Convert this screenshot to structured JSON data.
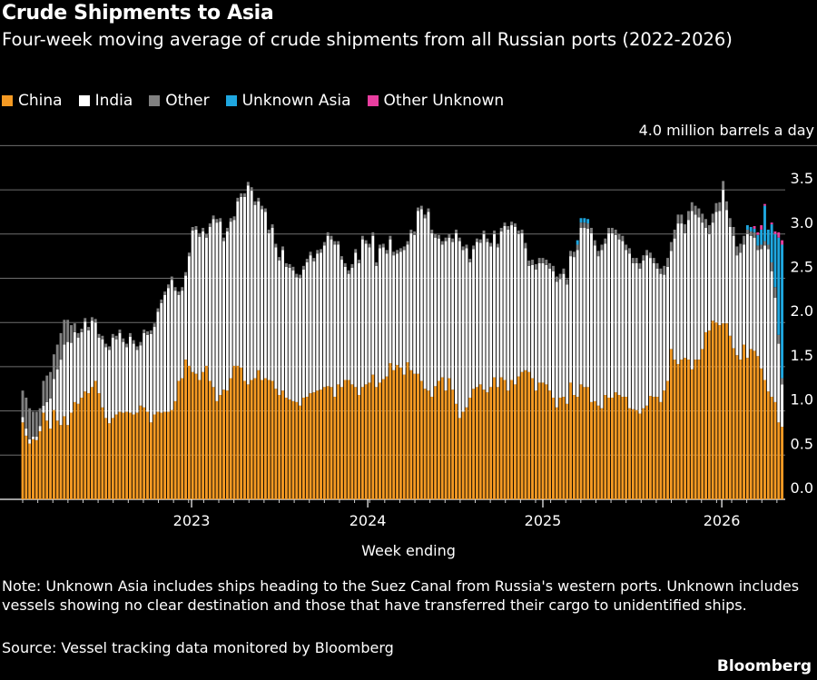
{
  "header": {
    "title": "Crude Shipments to Asia",
    "subtitle": "Four-week moving average of crude shipments from all Russian ports (2022-2026)"
  },
  "footer": {
    "note": "Note: Unknown Asia includes ships heading to the Suez Canal from Russia's western ports. Unknown includes vessels showing no clear destination and those that have transferred their cargo to unidentified ships.",
    "source": "Source: Vessel tracking data monitored by Bloomberg",
    "brand": "Bloomberg"
  },
  "chart_data": {
    "type": "bar",
    "stacked": true,
    "title": "Crude Shipments to Asia",
    "xlabel": "Week ending",
    "ylabel": "million barrels a day",
    "unit_label": "4.0 million barrels a day",
    "ylim": [
      0,
      4.0
    ],
    "grid": true,
    "legend_position": "top-left",
    "yticks": [
      {
        "value": 0.0,
        "label": "0.0"
      },
      {
        "value": 0.5,
        "label": "0.5"
      },
      {
        "value": 1.0,
        "label": "1.0"
      },
      {
        "value": 1.5,
        "label": "1.5"
      },
      {
        "value": 2.0,
        "label": "2.0"
      },
      {
        "value": 2.5,
        "label": "2.5"
      },
      {
        "value": 3.0,
        "label": "3.0"
      },
      {
        "value": 3.5,
        "label": "3.5"
      },
      {
        "value": 4.0,
        "label": ""
      }
    ],
    "xticks": [
      {
        "week_index": 48.7,
        "label": "2023"
      },
      {
        "week_index": 99.5,
        "label": "2024"
      },
      {
        "week_index": 150,
        "label": "2025"
      },
      {
        "week_index": 201.6,
        "label": "2026"
      }
    ],
    "n_weeks": 220,
    "series": [
      {
        "name": "China",
        "color": "#f59a23",
        "values": [
          0.87,
          0.72,
          0.63,
          0.68,
          0.67,
          0.77,
          0.98,
          0.89,
          0.8,
          1.01,
          0.89,
          0.84,
          0.94,
          0.84,
          0.98,
          1.1,
          1.08,
          1.15,
          1.22,
          1.2,
          1.27,
          1.34,
          1.2,
          1.04,
          0.92,
          0.86,
          0.92,
          0.96,
          0.99,
          0.98,
          0.99,
          0.98,
          0.96,
          0.98,
          1.06,
          1.04,
          0.99,
          0.87,
          0.96,
          0.99,
          0.98,
          0.99,
          0.99,
          1.01,
          1.11,
          1.34,
          1.37,
          1.58,
          1.51,
          1.44,
          1.42,
          1.35,
          1.44,
          1.51,
          1.34,
          1.27,
          1.11,
          1.18,
          1.24,
          1.23,
          1.37,
          1.51,
          1.51,
          1.49,
          1.34,
          1.3,
          1.35,
          1.37,
          1.46,
          1.35,
          1.37,
          1.35,
          1.34,
          1.25,
          1.18,
          1.23,
          1.15,
          1.13,
          1.11,
          1.1,
          1.06,
          1.15,
          1.16,
          1.2,
          1.21,
          1.23,
          1.24,
          1.27,
          1.28,
          1.27,
          1.16,
          1.3,
          1.27,
          1.35,
          1.35,
          1.3,
          1.27,
          1.18,
          1.27,
          1.3,
          1.32,
          1.41,
          1.27,
          1.32,
          1.36,
          1.39,
          1.54,
          1.46,
          1.52,
          1.49,
          1.41,
          1.55,
          1.46,
          1.42,
          1.42,
          1.34,
          1.25,
          1.23,
          1.16,
          1.28,
          1.34,
          1.38,
          1.23,
          1.37,
          1.24,
          1.08,
          0.92,
          0.99,
          1.04,
          1.15,
          1.25,
          1.27,
          1.3,
          1.24,
          1.21,
          1.27,
          1.38,
          1.27,
          1.38,
          1.35,
          1.23,
          1.35,
          1.3,
          1.39,
          1.44,
          1.46,
          1.44,
          1.37,
          1.23,
          1.32,
          1.32,
          1.3,
          1.23,
          1.15,
          1.04,
          1.15,
          1.16,
          1.08,
          1.32,
          1.18,
          1.16,
          1.3,
          1.27,
          1.27,
          1.1,
          1.11,
          1.06,
          1.03,
          1.18,
          1.15,
          1.15,
          1.21,
          1.18,
          1.16,
          1.16,
          1.03,
          1.02,
          1.01,
          0.97,
          1.03,
          1.06,
          1.17,
          1.16,
          1.16,
          1.1,
          1.23,
          1.34,
          1.7,
          1.58,
          1.53,
          1.58,
          1.6,
          1.58,
          1.47,
          1.58,
          1.58,
          1.7,
          1.89,
          1.91,
          2.02,
          2.0,
          1.97,
          1.99,
          1.99,
          1.85,
          1.71,
          1.63,
          1.58,
          1.75,
          1.6,
          1.7,
          1.68,
          1.62,
          1.48,
          1.35,
          1.22,
          1.16,
          1.1,
          0.87,
          0.82
        ]
      },
      {
        "name": "India",
        "color": "#ffffff",
        "values": [
          0.06,
          0.08,
          0.05,
          0.03,
          0.04,
          0.06,
          0.08,
          0.21,
          0.34,
          0.35,
          0.58,
          0.74,
          0.81,
          0.94,
          0.79,
          0.79,
          0.75,
          0.74,
          0.79,
          0.71,
          0.75,
          0.66,
          0.63,
          0.77,
          0.8,
          0.83,
          0.91,
          0.85,
          0.89,
          0.8,
          0.73,
          0.86,
          0.8,
          0.71,
          0.68,
          0.84,
          0.87,
          1.0,
          0.99,
          1.13,
          1.24,
          1.32,
          1.4,
          1.47,
          1.25,
          0.97,
          0.99,
          0.95,
          1.24,
          1.6,
          1.63,
          1.62,
          1.59,
          1.45,
          1.74,
          1.9,
          2.02,
          1.96,
          1.68,
          1.8,
          1.77,
          1.65,
          1.86,
          1.93,
          2.08,
          2.25,
          2.14,
          1.96,
          1.91,
          1.93,
          1.88,
          1.66,
          1.73,
          1.6,
          1.52,
          1.59,
          1.48,
          1.49,
          1.48,
          1.41,
          1.44,
          1.45,
          1.52,
          1.56,
          1.48,
          1.55,
          1.55,
          1.6,
          1.7,
          1.67,
          1.72,
          1.58,
          1.44,
          1.28,
          1.2,
          1.32,
          1.52,
          1.49,
          1.67,
          1.59,
          1.53,
          1.57,
          1.37,
          1.52,
          1.49,
          1.39,
          1.4,
          1.3,
          1.26,
          1.31,
          1.41,
          1.33,
          1.55,
          1.57,
          1.84,
          1.94,
          1.93,
          2.02,
          1.85,
          1.68,
          1.61,
          1.5,
          1.69,
          1.59,
          1.67,
          1.93,
          2.0,
          1.83,
          1.8,
          1.53,
          1.58,
          1.64,
          1.6,
          1.76,
          1.7,
          1.59,
          1.62,
          1.58,
          1.65,
          1.74,
          1.82,
          1.75,
          1.78,
          1.61,
          1.57,
          1.38,
          1.2,
          1.28,
          1.37,
          1.35,
          1.35,
          1.35,
          1.38,
          1.43,
          1.42,
          1.34,
          1.39,
          1.35,
          1.43,
          1.56,
          1.66,
          1.77,
          1.8,
          1.79,
          1.91,
          1.76,
          1.69,
          1.79,
          1.71,
          1.86,
          1.86,
          1.78,
          1.76,
          1.76,
          1.66,
          1.75,
          1.65,
          1.66,
          1.64,
          1.67,
          1.7,
          1.56,
          1.51,
          1.45,
          1.45,
          1.31,
          1.29,
          1.11,
          1.37,
          1.59,
          1.54,
          1.41,
          1.58,
          1.79,
          1.64,
          1.61,
          1.43,
          1.18,
          1.09,
          1.11,
          1.25,
          1.29,
          1.51,
          1.28,
          1.23,
          1.27,
          1.13,
          1.21,
          1.13,
          1.4,
          1.28,
          1.28,
          1.2,
          1.35,
          1.52,
          1.61,
          1.42,
          1.18,
          0.89,
          0.48
        ]
      },
      {
        "name": "Other",
        "color": "#808080",
        "values": [
          0.3,
          0.35,
          0.35,
          0.28,
          0.28,
          0.2,
          0.28,
          0.3,
          0.3,
          0.28,
          0.28,
          0.3,
          0.28,
          0.25,
          0.2,
          0.1,
          0.05,
          0.04,
          0.04,
          0.04,
          0.04,
          0.04,
          0.04,
          0.04,
          0.04,
          0.04,
          0.04,
          0.04,
          0.04,
          0.04,
          0.04,
          0.04,
          0.04,
          0.04,
          0.04,
          0.04,
          0.04,
          0.04,
          0.04,
          0.04,
          0.04,
          0.04,
          0.04,
          0.04,
          0.04,
          0.04,
          0.04,
          0.04,
          0.04,
          0.04,
          0.04,
          0.04,
          0.04,
          0.04,
          0.04,
          0.04,
          0.04,
          0.04,
          0.04,
          0.04,
          0.04,
          0.04,
          0.04,
          0.04,
          0.04,
          0.04,
          0.04,
          0.04,
          0.04,
          0.04,
          0.04,
          0.04,
          0.04,
          0.04,
          0.04,
          0.04,
          0.04,
          0.04,
          0.04,
          0.04,
          0.04,
          0.04,
          0.04,
          0.04,
          0.04,
          0.04,
          0.04,
          0.04,
          0.04,
          0.04,
          0.04,
          0.04,
          0.04,
          0.04,
          0.04,
          0.04,
          0.04,
          0.04,
          0.04,
          0.04,
          0.04,
          0.04,
          0.04,
          0.04,
          0.04,
          0.04,
          0.04,
          0.04,
          0.04,
          0.04,
          0.04,
          0.04,
          0.04,
          0.04,
          0.04,
          0.04,
          0.04,
          0.04,
          0.04,
          0.04,
          0.04,
          0.04,
          0.04,
          0.04,
          0.04,
          0.04,
          0.04,
          0.04,
          0.04,
          0.04,
          0.04,
          0.04,
          0.04,
          0.04,
          0.04,
          0.04,
          0.04,
          0.04,
          0.04,
          0.04,
          0.04,
          0.04,
          0.04,
          0.04,
          0.04,
          0.06,
          0.06,
          0.06,
          0.06,
          0.06,
          0.06,
          0.06,
          0.06,
          0.06,
          0.06,
          0.06,
          0.06,
          0.06,
          0.06,
          0.06,
          0.06,
          0.06,
          0.06,
          0.06,
          0.06,
          0.06,
          0.06,
          0.06,
          0.06,
          0.06,
          0.06,
          0.06,
          0.06,
          0.06,
          0.06,
          0.06,
          0.06,
          0.06,
          0.06,
          0.06,
          0.06,
          0.06,
          0.06,
          0.06,
          0.06,
          0.1,
          0.1,
          0.1,
          0.1,
          0.1,
          0.1,
          0.1,
          0.1,
          0.1,
          0.1,
          0.1,
          0.1,
          0.1,
          0.1,
          0.1,
          0.1,
          0.1,
          0.1,
          0.1,
          0.1,
          0.1,
          0.1,
          0.1,
          0.1,
          0.05,
          0.05,
          0.06,
          0.05,
          0.05,
          0.05,
          0.05,
          0.1,
          0.12,
          0.1,
          0.07
        ]
      },
      {
        "name": "Unknown Asia",
        "color": "#1fa7e0",
        "values": [
          0,
          0,
          0,
          0,
          0,
          0,
          0,
          0,
          0,
          0,
          0,
          0,
          0,
          0,
          0,
          0,
          0,
          0,
          0,
          0,
          0,
          0,
          0,
          0,
          0,
          0,
          0,
          0,
          0,
          0,
          0,
          0,
          0,
          0,
          0,
          0,
          0,
          0,
          0,
          0,
          0,
          0,
          0,
          0,
          0,
          0,
          0,
          0,
          0,
          0,
          0,
          0,
          0,
          0,
          0,
          0,
          0,
          0,
          0,
          0,
          0,
          0,
          0,
          0,
          0,
          0,
          0,
          0,
          0,
          0,
          0,
          0,
          0,
          0,
          0,
          0,
          0,
          0,
          0,
          0,
          0,
          0,
          0,
          0,
          0,
          0,
          0,
          0,
          0,
          0,
          0,
          0,
          0,
          0,
          0,
          0,
          0,
          0,
          0,
          0,
          0,
          0,
          0,
          0,
          0,
          0,
          0,
          0,
          0,
          0,
          0,
          0,
          0,
          0,
          0,
          0,
          0,
          0,
          0,
          0,
          0,
          0,
          0,
          0,
          0,
          0,
          0,
          0,
          0,
          0,
          0,
          0,
          0,
          0,
          0,
          0,
          0,
          0,
          0,
          0,
          0,
          0,
          0,
          0,
          0,
          0,
          0,
          0,
          0,
          0,
          0,
          0,
          0,
          0,
          0,
          0,
          0,
          0,
          0,
          0,
          0.05,
          0.05,
          0.05,
          0.05,
          0,
          0,
          0,
          0,
          0,
          0,
          0,
          0,
          0,
          0,
          0,
          0,
          0,
          0,
          0,
          0,
          0,
          0,
          0,
          0,
          0,
          0,
          0,
          0,
          0,
          0,
          0,
          0,
          0,
          0,
          0,
          0,
          0,
          0,
          0,
          0,
          0,
          0,
          0,
          0,
          0,
          0,
          0,
          0,
          0,
          0.05,
          0.05,
          0.04,
          0.12,
          0.17,
          0.4,
          0.17,
          0.43,
          0.6,
          1.1,
          1.51
        ]
      },
      {
        "name": "Other Unknown",
        "color": "#e83e9f",
        "values": [
          0,
          0,
          0,
          0,
          0,
          0,
          0,
          0,
          0,
          0,
          0,
          0,
          0,
          0,
          0,
          0,
          0,
          0,
          0,
          0,
          0,
          0,
          0,
          0,
          0,
          0,
          0,
          0,
          0,
          0,
          0,
          0,
          0,
          0,
          0,
          0,
          0,
          0,
          0,
          0,
          0,
          0,
          0,
          0,
          0,
          0,
          0,
          0,
          0,
          0,
          0,
          0,
          0,
          0,
          0,
          0,
          0,
          0,
          0,
          0,
          0,
          0,
          0,
          0,
          0,
          0,
          0,
          0,
          0,
          0,
          0,
          0,
          0,
          0,
          0,
          0,
          0,
          0,
          0,
          0,
          0,
          0,
          0,
          0,
          0,
          0,
          0,
          0,
          0,
          0,
          0,
          0,
          0,
          0,
          0,
          0,
          0,
          0,
          0,
          0,
          0,
          0,
          0,
          0,
          0,
          0,
          0,
          0,
          0,
          0,
          0,
          0,
          0,
          0,
          0,
          0,
          0,
          0,
          0,
          0,
          0,
          0,
          0,
          0,
          0,
          0,
          0,
          0,
          0,
          0,
          0,
          0,
          0,
          0,
          0,
          0,
          0,
          0,
          0,
          0,
          0,
          0,
          0,
          0,
          0,
          0,
          0,
          0,
          0,
          0,
          0,
          0,
          0,
          0,
          0,
          0,
          0,
          0,
          0,
          0,
          0,
          0,
          0,
          0,
          0,
          0,
          0,
          0,
          0,
          0,
          0,
          0,
          0,
          0,
          0,
          0,
          0,
          0,
          0,
          0,
          0,
          0,
          0,
          0,
          0,
          0,
          0,
          0,
          0,
          0,
          0,
          0,
          0,
          0,
          0,
          0,
          0,
          0,
          0,
          0,
          0,
          0,
          0,
          0,
          0,
          0,
          0,
          0,
          0,
          0,
          0,
          0.03,
          0.03,
          0.05,
          0.02,
          0,
          0.02,
          0.03,
          0.06,
          0.05
        ]
      }
    ]
  }
}
